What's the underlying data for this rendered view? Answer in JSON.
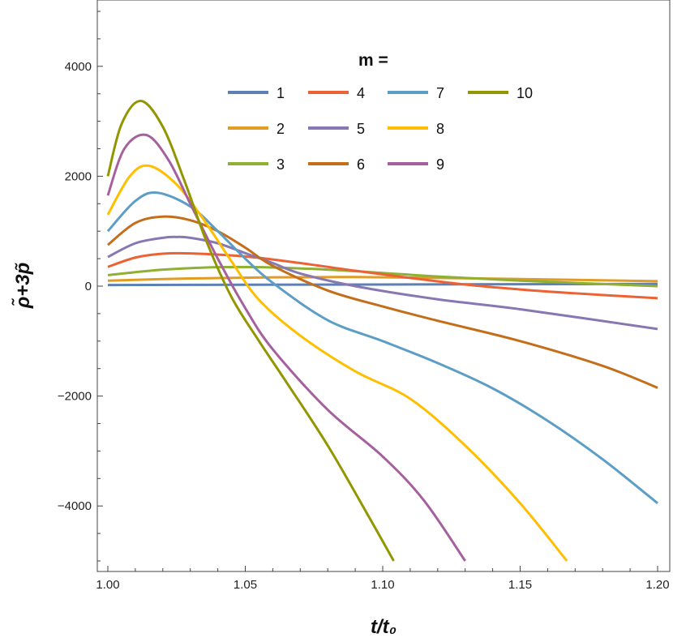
{
  "chart_data": {
    "type": "line",
    "xlabel": "t/t₀",
    "ylabel": "ρ̃+3p̃",
    "xlim": [
      1.0,
      1.2
    ],
    "ylim": [
      -5000,
      5000
    ],
    "x_ticks": [
      "1.00",
      "1.05",
      "1.10",
      "1.15",
      "1.20"
    ],
    "y_ticks": [
      "4000",
      "2000",
      "0",
      "−2000",
      "−4000"
    ],
    "grid": false,
    "legend": {
      "title": "m =",
      "placement": "top-right"
    },
    "series": [
      {
        "name": "1",
        "color": "#5e81b5",
        "x": [
          1.0,
          1.05,
          1.1,
          1.15,
          1.2
        ],
        "y": [
          20,
          25,
          30,
          35,
          40
        ]
      },
      {
        "name": "2",
        "color": "#e19c24",
        "x": [
          1.0,
          1.03,
          1.06,
          1.09,
          1.12,
          1.15,
          1.2
        ],
        "y": [
          100,
          140,
          160,
          165,
          150,
          130,
          90
        ]
      },
      {
        "name": "3",
        "color": "#8fb032",
        "x": [
          1.0,
          1.02,
          1.04,
          1.06,
          1.08,
          1.1,
          1.12,
          1.15,
          1.2
        ],
        "y": [
          200,
          300,
          345,
          340,
          300,
          240,
          175,
          100,
          0
        ]
      },
      {
        "name": "4",
        "color": "#eb6235",
        "x": [
          1.0,
          1.01,
          1.02,
          1.03,
          1.05,
          1.07,
          1.09,
          1.11,
          1.13,
          1.15,
          1.17,
          1.2
        ],
        "y": [
          350,
          520,
          590,
          595,
          540,
          420,
          280,
          150,
          30,
          -60,
          -130,
          -220
        ]
      },
      {
        "name": "5",
        "color": "#8778b3",
        "x": [
          1.0,
          1.01,
          1.02,
          1.025,
          1.03,
          1.04,
          1.05,
          1.06,
          1.07,
          1.09,
          1.12,
          1.15,
          1.2
        ],
        "y": [
          530,
          780,
          880,
          895,
          880,
          780,
          600,
          420,
          230,
          0,
          -240,
          -420,
          -780
        ]
      },
      {
        "name": "6",
        "color": "#c56e1a",
        "x": [
          1.0,
          1.01,
          1.02,
          1.03,
          1.04,
          1.05,
          1.06,
          1.08,
          1.1,
          1.12,
          1.15,
          1.18,
          1.2
        ],
        "y": [
          750,
          1150,
          1265,
          1200,
          1000,
          700,
          370,
          -80,
          -370,
          -630,
          -1000,
          -1450,
          -1850
        ]
      },
      {
        "name": "7",
        "color": "#5d9ec7",
        "x": [
          1.0,
          1.01,
          1.018,
          1.03,
          1.04,
          1.05,
          1.06,
          1.08,
          1.1,
          1.12,
          1.14,
          1.16,
          1.18,
          1.2
        ],
        "y": [
          1000,
          1550,
          1700,
          1450,
          1000,
          500,
          60,
          -620,
          -1000,
          -1400,
          -1860,
          -2450,
          -3150,
          -3950
        ]
      },
      {
        "name": "8",
        "color": "#ffbf00",
        "x": [
          1.0,
          1.008,
          1.015,
          1.025,
          1.035,
          1.045,
          1.055,
          1.07,
          1.09,
          1.11,
          1.13,
          1.15,
          1.167
        ],
        "y": [
          1300,
          2000,
          2190,
          1850,
          1200,
          450,
          -250,
          -900,
          -1550,
          -2050,
          -2900,
          -3950,
          -5000
        ]
      },
      {
        "name": "9",
        "color": "#a5609d",
        "x": [
          1.0,
          1.006,
          1.014,
          1.022,
          1.03,
          1.04,
          1.05,
          1.06,
          1.08,
          1.1,
          1.115,
          1.13
        ],
        "y": [
          1650,
          2500,
          2750,
          2300,
          1500,
          500,
          -400,
          -1150,
          -2250,
          -3100,
          -3900,
          -5000
        ]
      },
      {
        "name": "10",
        "color": "#929600",
        "x": [
          1.0,
          1.005,
          1.012,
          1.02,
          1.028,
          1.036,
          1.045,
          1.055,
          1.065,
          1.08,
          1.095,
          1.104
        ],
        "y": [
          2000,
          2950,
          3370,
          2900,
          1900,
          800,
          -200,
          -1000,
          -1750,
          -2900,
          -4200,
          -5000
        ]
      }
    ]
  }
}
